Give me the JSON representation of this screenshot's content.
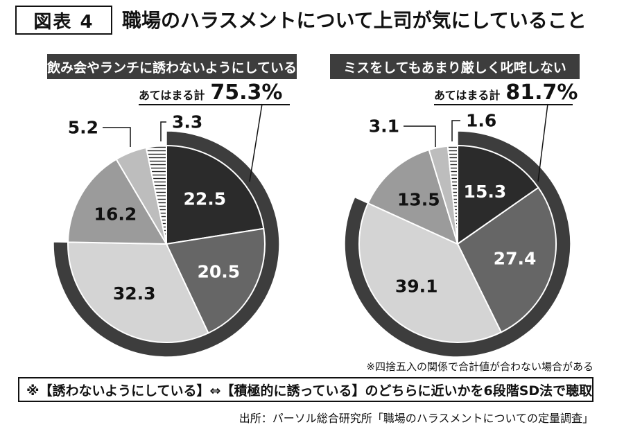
{
  "figure_label": "図表 4",
  "title": "職場のハラスメントについて上司が気にしていること",
  "total_label": "あてはまる計",
  "chart_data": [
    {
      "type": "pie",
      "title": "飲み会やランチに誘わないようにしている",
      "total": "75.3%",
      "slices": [
        {
          "value": 22.5,
          "label": "22.5",
          "color": "#2b2b2b",
          "text_color": "#ffffff",
          "group": "agree"
        },
        {
          "value": 20.5,
          "label": "20.5",
          "color": "#666666",
          "text_color": "#ffffff",
          "group": "agree"
        },
        {
          "value": 32.3,
          "label": "32.3",
          "color": "#d4d4d4",
          "text_color": "#111111",
          "group": "agree"
        },
        {
          "value": 16.2,
          "label": "16.2",
          "color": "#9b9b9b",
          "text_color": "#111111",
          "group": "other"
        },
        {
          "value": 5.2,
          "label": "5.2",
          "color": "#bdbdbd",
          "text_color": "#111111",
          "group": "other"
        },
        {
          "value": 3.3,
          "label": "3.3",
          "color": "hatch",
          "text_color": "#111111",
          "group": "other"
        }
      ]
    },
    {
      "type": "pie",
      "title": "ミスをしてもあまり厳しく叱咤しない",
      "total": "81.7%",
      "slices": [
        {
          "value": 15.3,
          "label": "15.3",
          "color": "#2b2b2b",
          "text_color": "#ffffff",
          "group": "agree"
        },
        {
          "value": 27.4,
          "label": "27.4",
          "color": "#666666",
          "text_color": "#ffffff",
          "group": "agree"
        },
        {
          "value": 39.1,
          "label": "39.1",
          "color": "#d4d4d4",
          "text_color": "#111111",
          "group": "agree"
        },
        {
          "value": 13.5,
          "label": "13.5",
          "color": "#9b9b9b",
          "text_color": "#111111",
          "group": "other"
        },
        {
          "value": 3.1,
          "label": "3.1",
          "color": "#bdbdbd",
          "text_color": "#111111",
          "group": "other"
        },
        {
          "value": 1.6,
          "label": "1.6",
          "color": "hatch",
          "text_color": "#111111",
          "group": "other"
        }
      ]
    }
  ],
  "note": "※四捨五入の関係で合計値が合わない場合がある",
  "method": "※【誘わないようにしている】⇔【積極的に誘っている】のどちらに近いかを6段階SD法で聴取",
  "source": "出所：パーソル総合研究所「職場のハラスメントについての定量調査」",
  "colors": {
    "ring": "#3d3d3d",
    "header_bg": "#3d3d3d"
  }
}
